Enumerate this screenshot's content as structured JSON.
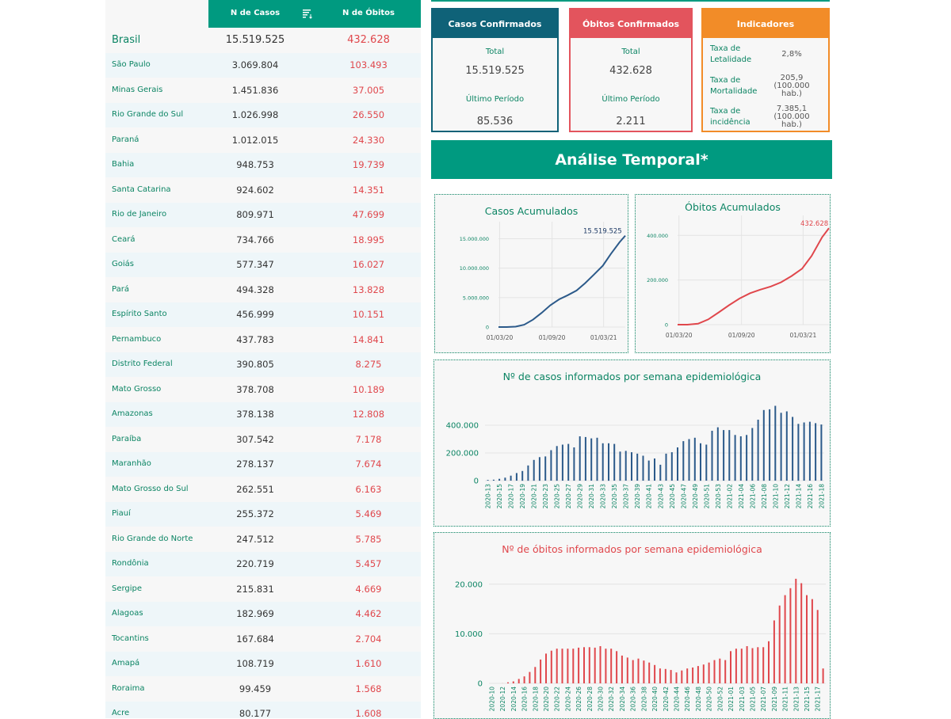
{
  "table": {
    "header_cases": "N de Casos",
    "header_deaths": "N de Óbitos",
    "sort_icon": "sort-icon",
    "rows": [
      {
        "name": "Brasil",
        "cases": "15.519.525",
        "deaths": "432.628"
      },
      {
        "name": "São Paulo",
        "cases": "3.069.804",
        "deaths": "103.493"
      },
      {
        "name": "Minas Gerais",
        "cases": "1.451.836",
        "deaths": "37.005"
      },
      {
        "name": "Rio Grande do Sul",
        "cases": "1.026.998",
        "deaths": "26.550"
      },
      {
        "name": "Paraná",
        "cases": "1.012.015",
        "deaths": "24.330"
      },
      {
        "name": "Bahia",
        "cases": "948.753",
        "deaths": "19.739"
      },
      {
        "name": "Santa Catarina",
        "cases": "924.602",
        "deaths": "14.351"
      },
      {
        "name": "Rio de Janeiro",
        "cases": "809.971",
        "deaths": "47.699"
      },
      {
        "name": "Ceará",
        "cases": "734.766",
        "deaths": "18.995"
      },
      {
        "name": "Goiás",
        "cases": "577.347",
        "deaths": "16.027"
      },
      {
        "name": "Pará",
        "cases": "494.328",
        "deaths": "13.828"
      },
      {
        "name": "Espírito Santo",
        "cases": "456.999",
        "deaths": "10.151"
      },
      {
        "name": "Pernambuco",
        "cases": "437.783",
        "deaths": "14.841"
      },
      {
        "name": "Distrito Federal",
        "cases": "390.805",
        "deaths": "8.275"
      },
      {
        "name": "Mato Grosso",
        "cases": "378.708",
        "deaths": "10.189"
      },
      {
        "name": "Amazonas",
        "cases": "378.138",
        "deaths": "12.808"
      },
      {
        "name": "Paraíba",
        "cases": "307.542",
        "deaths": "7.178"
      },
      {
        "name": "Maranhão",
        "cases": "278.137",
        "deaths": "7.674"
      },
      {
        "name": "Mato Grosso do Sul",
        "cases": "262.551",
        "deaths": "6.163"
      },
      {
        "name": "Piauí",
        "cases": "255.372",
        "deaths": "5.469"
      },
      {
        "name": "Rio Grande do Norte",
        "cases": "247.512",
        "deaths": "5.785"
      },
      {
        "name": "Rondônia",
        "cases": "220.719",
        "deaths": "5.457"
      },
      {
        "name": "Sergipe",
        "cases": "215.831",
        "deaths": "4.669"
      },
      {
        "name": "Alagoas",
        "cases": "182.969",
        "deaths": "4.462"
      },
      {
        "name": "Tocantins",
        "cases": "167.684",
        "deaths": "2.704"
      },
      {
        "name": "Amapá",
        "cases": "108.719",
        "deaths": "1.610"
      },
      {
        "name": "Roraima",
        "cases": "99.459",
        "deaths": "1.568"
      },
      {
        "name": "Acre",
        "cases": "80.177",
        "deaths": "1.608"
      }
    ]
  },
  "cards": {
    "cases": {
      "title": "Casos Confirmados",
      "total_label": "Total",
      "total": "15.519.525",
      "last_label": "Último Período",
      "last": "85.536"
    },
    "deaths": {
      "title": "Óbitos Confirmados",
      "total_label": "Total",
      "total": "432.628",
      "last_label": "Último Período",
      "last": "2.211"
    },
    "indicators": {
      "title": "Indicadores",
      "letalidade_label": "Taxa de Letalidade",
      "letalidade": "2,8%",
      "mortalidade_label": "Taxa de Mortalidade",
      "mortalidade": "205,9 (100.000 hab.)",
      "incidencia_label": "Taxa de incidência",
      "incidencia": "7.385,1 (100.000 hab.)"
    }
  },
  "section_title": "Análise Temporal*",
  "colors": {
    "green": "#009a80",
    "blue_dark": "#0f6278",
    "red": "#e3545d",
    "orange": "#f28c28",
    "case_line": "#2c5a8a",
    "death_line": "#e0474c"
  },
  "chart_data": [
    {
      "type": "line",
      "title": "Casos Acumulados",
      "x_ticks": [
        "01/03/20",
        "01/09/20",
        "01/03/21"
      ],
      "y_ticks": [
        "0",
        "5.000.000",
        "10.000.000",
        "15.000.000"
      ],
      "ylim": [
        0,
        16000000
      ],
      "end_label": "15.519.525",
      "x": [
        "2020-02-26",
        "2020-03-26",
        "2020-04-26",
        "2020-05-26",
        "2020-06-26",
        "2020-07-26",
        "2020-08-26",
        "2020-09-26",
        "2020-10-26",
        "2020-11-26",
        "2020-12-26",
        "2021-01-26",
        "2021-02-26",
        "2021-03-26",
        "2021-04-26",
        "2021-05-16"
      ],
      "values": [
        0,
        2900,
        62000,
        390000,
        1250000,
        2400000,
        3700000,
        4700000,
        5400000,
        6200000,
        7450000,
        8900000,
        10400000,
        12400000,
        14400000,
        15519525
      ]
    },
    {
      "type": "line",
      "title": "Óbitos Acumulados",
      "x_ticks": [
        "01/03/20",
        "01/09/20",
        "01/03/21"
      ],
      "y_ticks": [
        "0",
        "200.000",
        "400.000"
      ],
      "ylim": [
        0,
        440000
      ],
      "end_label": "432.628",
      "x": [
        "2020-02-26",
        "2020-03-26",
        "2020-04-26",
        "2020-05-26",
        "2020-06-26",
        "2020-07-26",
        "2020-08-26",
        "2020-09-26",
        "2020-10-26",
        "2020-11-26",
        "2020-12-26",
        "2021-01-26",
        "2021-02-26",
        "2021-03-26",
        "2021-04-26",
        "2021-05-16"
      ],
      "values": [
        0,
        100,
        4200,
        23500,
        55000,
        87000,
        117000,
        141000,
        157000,
        171000,
        190000,
        218000,
        251000,
        308000,
        392000,
        432628
      ]
    },
    {
      "type": "bar",
      "title": "Nº de casos informados por semana epidemiológica",
      "y_ticks": [
        "0",
        "200.000",
        "400.000"
      ],
      "ylim": [
        0,
        560000
      ],
      "categories": [
        "2020-13",
        "2020-14",
        "2020-15",
        "2020-16",
        "2020-17",
        "2020-18",
        "2020-19",
        "2020-20",
        "2020-21",
        "2020-22",
        "2020-23",
        "2020-24",
        "2020-25",
        "2020-26",
        "2020-27",
        "2020-28",
        "2020-29",
        "2020-30",
        "2020-31",
        "2020-32",
        "2020-33",
        "2020-34",
        "2020-35",
        "2020-36",
        "2020-37",
        "2020-38",
        "2020-39",
        "2020-40",
        "2020-41",
        "2020-42",
        "2020-43",
        "2020-44",
        "2020-45",
        "2020-46",
        "2020-47",
        "2020-48",
        "2020-49",
        "2020-50",
        "2020-51",
        "2020-52",
        "2020-53",
        "2021-01",
        "2021-02",
        "2021-03",
        "2021-04",
        "2021-05",
        "2021-06",
        "2021-07",
        "2021-08",
        "2021-09",
        "2021-10",
        "2021-11",
        "2021-12",
        "2021-13",
        "2021-14",
        "2021-15",
        "2021-16",
        "2021-17",
        "2021-18"
      ],
      "x_tick_labels": [
        "2020-13",
        "2020-15",
        "2020-17",
        "2020-19",
        "2020-21",
        "2020-23",
        "2020-25",
        "2020-27",
        "2020-29",
        "2020-31",
        "2020-33",
        "2020-35",
        "2020-37",
        "2020-39",
        "2020-41",
        "2020-43",
        "2020-45",
        "2020-47",
        "2020-49",
        "2020-51",
        "2020-53",
        "2021-02",
        "2021-04",
        "2021-06",
        "2021-08",
        "2021-10",
        "2021-12",
        "2021-14",
        "2021-16",
        "2021-18"
      ],
      "values": [
        5000,
        7000,
        13000,
        22000,
        36000,
        55000,
        70000,
        110000,
        150000,
        170000,
        175000,
        220000,
        250000,
        260000,
        265000,
        240000,
        320000,
        315000,
        305000,
        310000,
        270000,
        270000,
        265000,
        210000,
        215000,
        205000,
        195000,
        180000,
        145000,
        160000,
        115000,
        195000,
        205000,
        240000,
        285000,
        300000,
        310000,
        270000,
        260000,
        360000,
        385000,
        365000,
        365000,
        330000,
        320000,
        330000,
        380000,
        440000,
        510000,
        515000,
        540000,
        490000,
        500000,
        460000,
        410000,
        420000,
        425000,
        415000,
        405000
      ]
    },
    {
      "type": "bar",
      "title": "Nº de óbitos informados por semana epidemiológica",
      "y_ticks": [
        "0",
        "10.000",
        "20.000"
      ],
      "ylim": [
        0,
        23000
      ],
      "categories": [
        "2020-10",
        "2020-11",
        "2020-12",
        "2020-13",
        "2020-14",
        "2020-15",
        "2020-16",
        "2020-17",
        "2020-18",
        "2020-19",
        "2020-20",
        "2020-21",
        "2020-22",
        "2020-23",
        "2020-24",
        "2020-25",
        "2020-26",
        "2020-27",
        "2020-28",
        "2020-29",
        "2020-30",
        "2020-31",
        "2020-32",
        "2020-33",
        "2020-34",
        "2020-35",
        "2020-36",
        "2020-37",
        "2020-38",
        "2020-39",
        "2020-40",
        "2020-41",
        "2020-42",
        "2020-43",
        "2020-44",
        "2020-45",
        "2020-46",
        "2020-47",
        "2020-48",
        "2020-49",
        "2020-50",
        "2020-51",
        "2020-52",
        "2020-53",
        "2021-01",
        "2021-02",
        "2021-03",
        "2021-04",
        "2021-05",
        "2021-06",
        "2021-07",
        "2021-08",
        "2021-09",
        "2021-10",
        "2021-11",
        "2021-12",
        "2021-13",
        "2021-14",
        "2021-15",
        "2021-16",
        "2021-17",
        "2021-18"
      ],
      "x_tick_labels": [
        "2020-10",
        "2020-12",
        "2020-14",
        "2020-16",
        "2020-18",
        "2020-20",
        "2020-22",
        "2020-24",
        "2020-26",
        "2020-28",
        "2020-30",
        "2020-32",
        "2020-34",
        "2020-36",
        "2020-38",
        "2020-40",
        "2020-42",
        "2020-44",
        "2020-46",
        "2020-48",
        "2020-50",
        "2020-52",
        "2021-01",
        "2021-03",
        "2021-05",
        "2021-07",
        "2021-09",
        "2021-11",
        "2021-13",
        "2021-15",
        "2021-17"
      ],
      "values": [
        0,
        0,
        10,
        200,
        400,
        900,
        1400,
        2300,
        3300,
        4800,
        6000,
        6600,
        7000,
        7000,
        7000,
        7000,
        7200,
        7300,
        7300,
        7200,
        7500,
        7000,
        7000,
        6500,
        5600,
        5200,
        4700,
        5000,
        4600,
        4200,
        3700,
        3000,
        2900,
        2700,
        2200,
        2600,
        3000,
        3200,
        3500,
        3800,
        4200,
        4700,
        5000,
        4700,
        6500,
        7000,
        7000,
        7500,
        7100,
        7300,
        7300,
        8500,
        12700,
        15700,
        17800,
        19200,
        21100,
        20200,
        17800,
        17000,
        14800,
        3000
      ]
    }
  ]
}
